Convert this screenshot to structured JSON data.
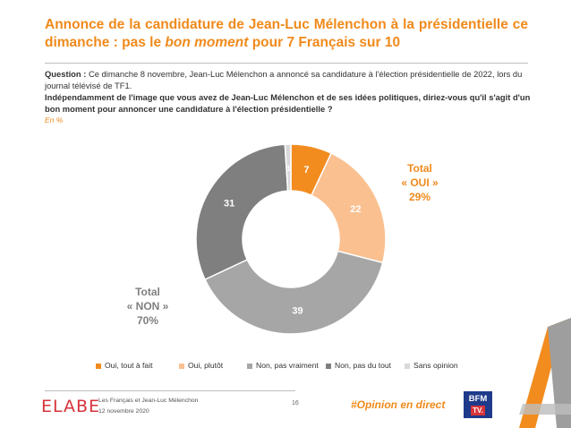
{
  "title": {
    "part1": "Annonce de la candidature de Jean-Luc Mélenchon à la présidentielle ce dimanche : pas le ",
    "emphasis": "bon moment",
    "part2": " pour 7 Français sur 10"
  },
  "question": {
    "label": "Question :",
    "context": " Ce dimanche 8 novembre, Jean-Luc Mélenchon a annoncé sa candidature à l'élection présidentielle de 2022, lors du journal télévisé de TF1.",
    "main": "Indépendamment de l'image que vous avez de Jean-Luc Mélenchon et de ses idées politiques, diriez-vous qu'il s'agit d'un bon moment pour annoncer une candidature à l'élection présidentielle ?",
    "unit": "En %"
  },
  "totals": {
    "oui": {
      "label": "Total",
      "name": "« OUI »",
      "value": "29%"
    },
    "non": {
      "label": "Total",
      "name": "« NON »",
      "value": "70%"
    }
  },
  "chart_data": {
    "type": "pie",
    "donut": true,
    "start": "top, clockwise",
    "categories": [
      "Oui, tout à fait",
      "Oui, plutôt",
      "Non, pas vraiment",
      "Non, pas du tout",
      "Sans opinion"
    ],
    "values": [
      7,
      22,
      39,
      31,
      1
    ],
    "labels": [
      "7",
      "22",
      "39",
      "31",
      "1"
    ],
    "colors": [
      "#f28c1f",
      "#fac090",
      "#a6a6a6",
      "#7f7f7f",
      "#d9d9d9"
    ],
    "label_colors": [
      "#ffffff",
      "#ffffff",
      "#ffffff",
      "#ffffff",
      "#ffffff"
    ],
    "legend_position": "bottom"
  },
  "footer": {
    "logo": "ELABE",
    "line1": "Les Français et Jean-Luc Mélenchon",
    "line2": "12 novembre 2020",
    "page": "16",
    "hashtag": "#Opinion en direct",
    "broadcaster": "BFM",
    "broadcaster_tv": "TV."
  }
}
